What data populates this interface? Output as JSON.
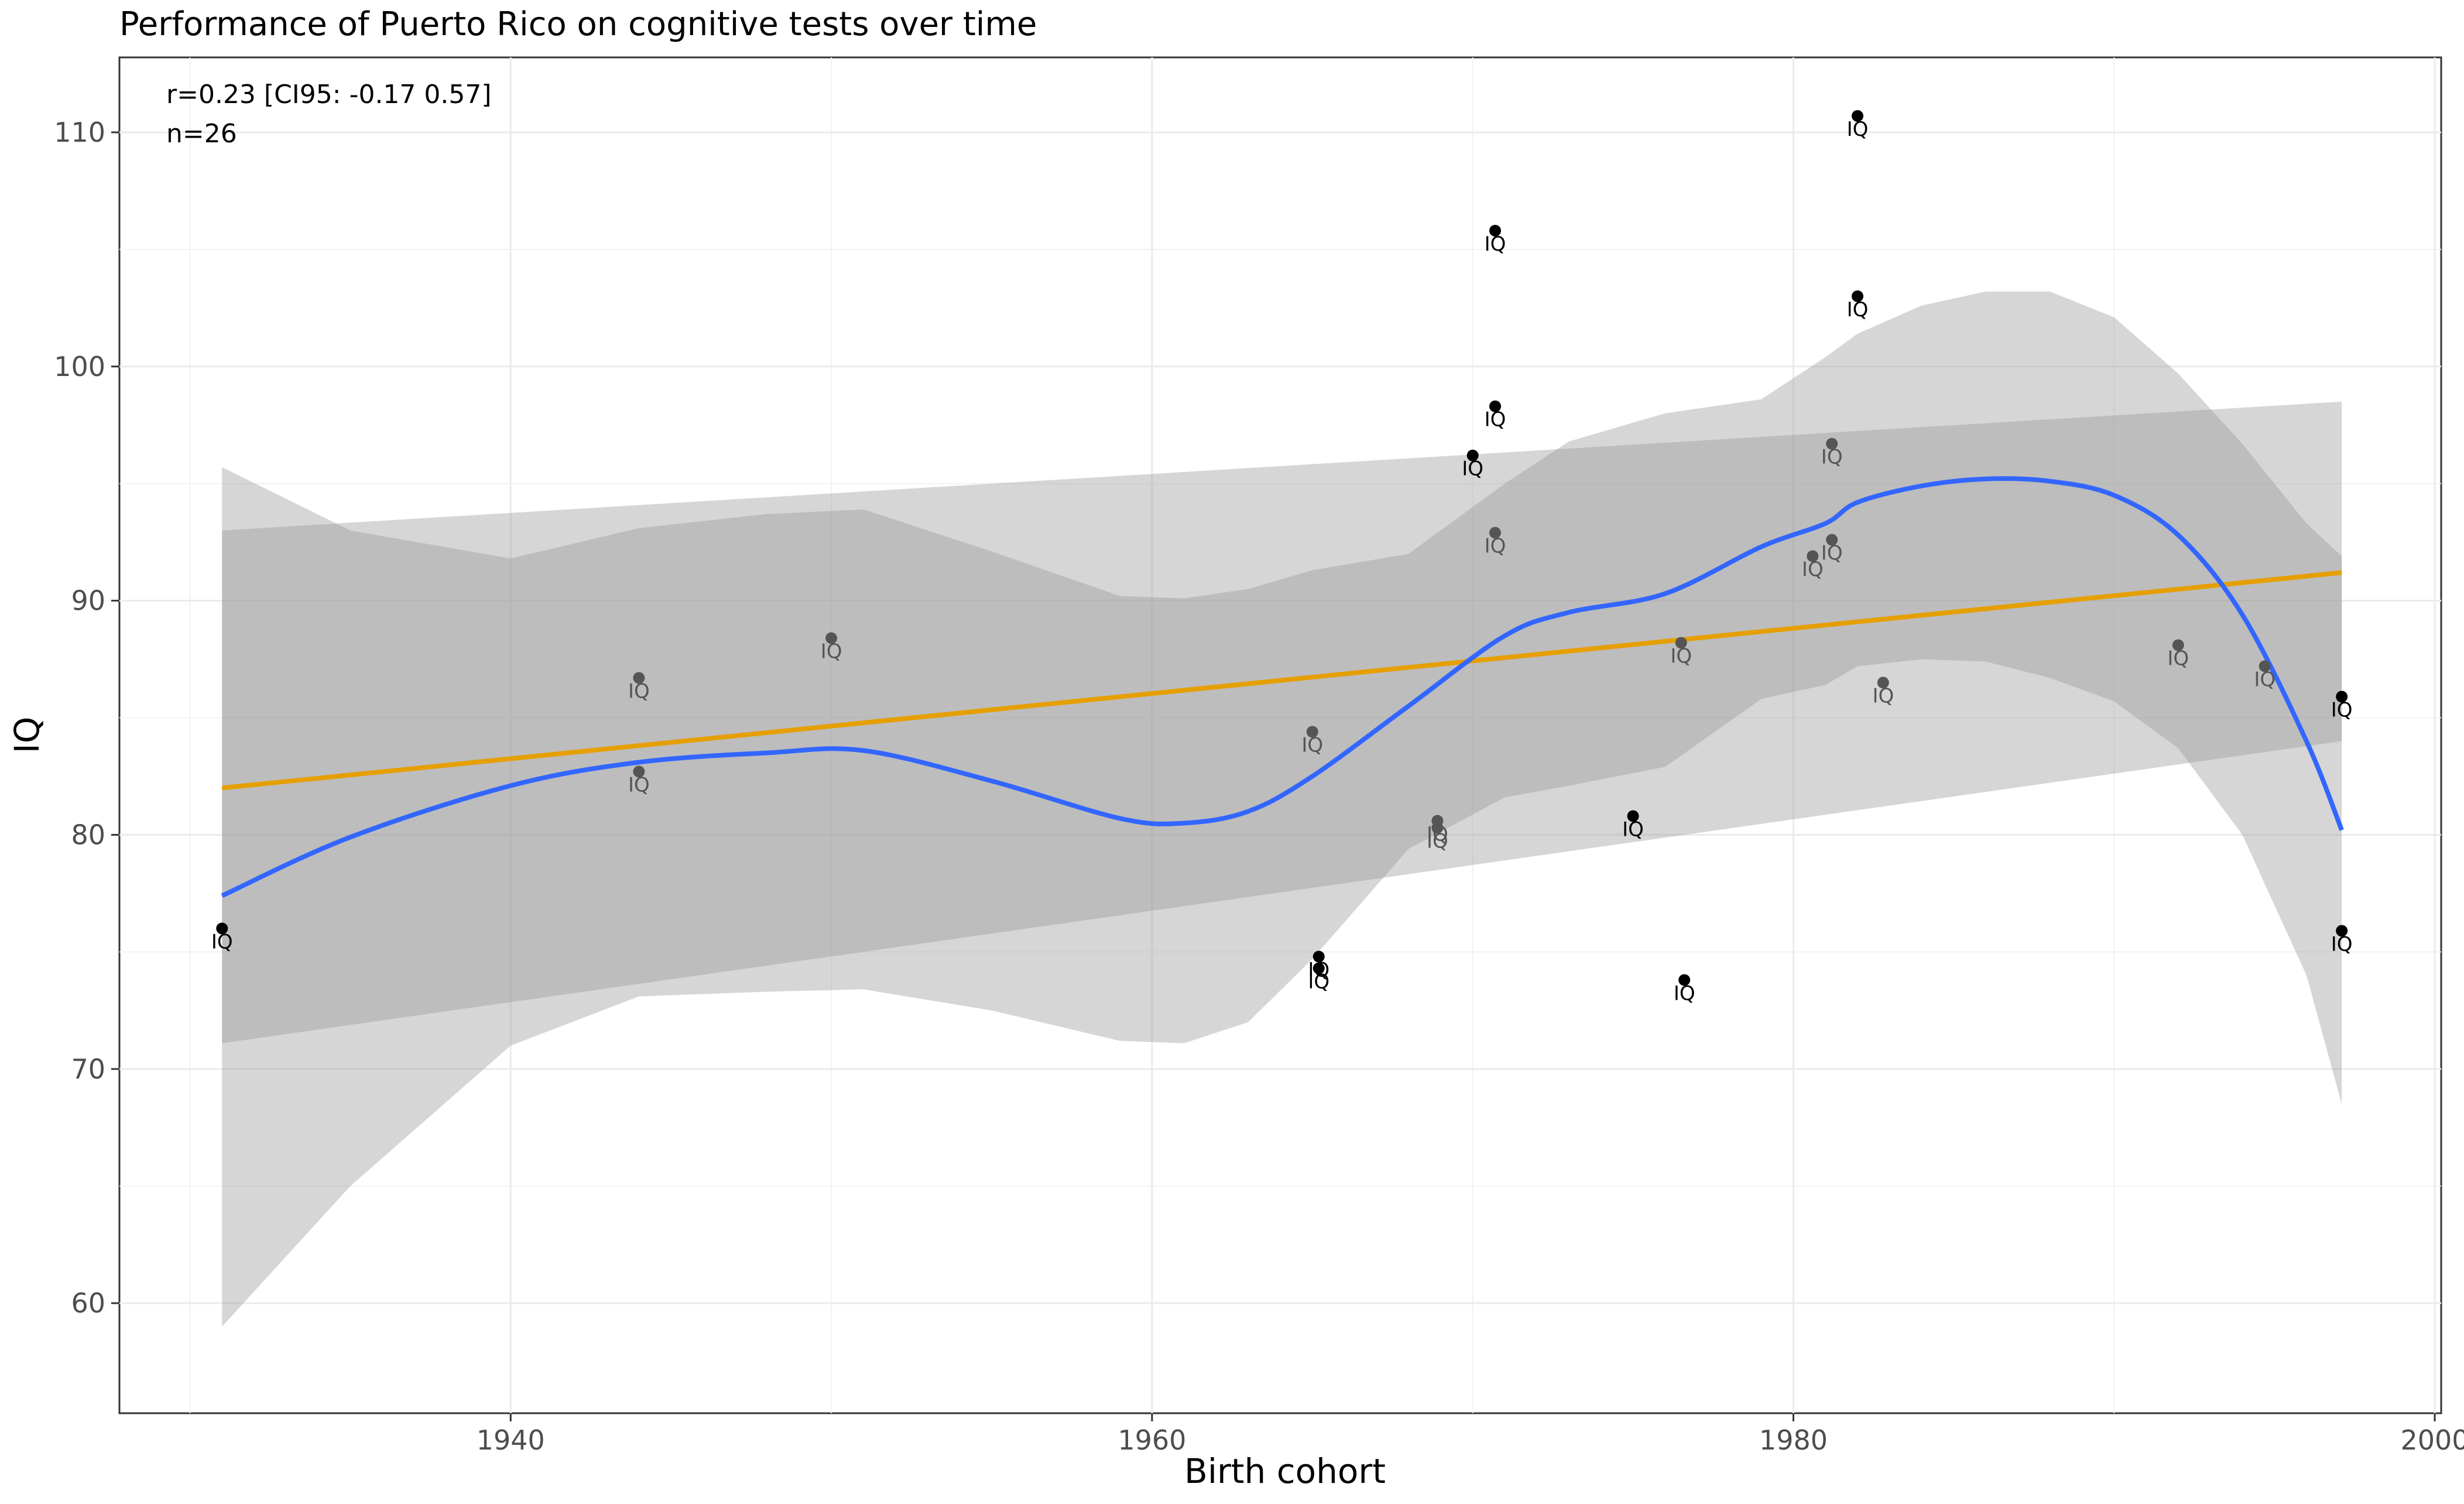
{
  "chart_data": {
    "type": "scatter",
    "title": "Performance of Puerto Rico on cognitive tests over time",
    "xlabel": "Birth cohort",
    "ylabel": "IQ",
    "xlim": [
      1927.8,
      2000.2
    ],
    "ylim": [
      55.3,
      113.2
    ],
    "x_ticks": [
      1940,
      1960,
      1980,
      2000
    ],
    "y_ticks": [
      60,
      70,
      80,
      90,
      100,
      110
    ],
    "grid": true,
    "annotations": [
      "r=0.23 [CI95: -0.17 0.57]",
      "n=26"
    ],
    "point_label": "IQ",
    "points": [
      {
        "x": 1931.0,
        "y": 76.0,
        "label": "IQ",
        "shade": "dark"
      },
      {
        "x": 1944.0,
        "y": 86.7,
        "label": "IQ",
        "shade": "grey"
      },
      {
        "x": 1944.0,
        "y": 82.7,
        "label": "IQ",
        "shade": "grey"
      },
      {
        "x": 1950.0,
        "y": 88.4,
        "label": "IQ",
        "shade": "grey"
      },
      {
        "x": 1965.0,
        "y": 84.4,
        "label": "IQ",
        "shade": "grey"
      },
      {
        "x": 1965.2,
        "y": 74.8,
        "label": "IQ",
        "shade": "dark"
      },
      {
        "x": 1965.2,
        "y": 74.3,
        "label": "IQ",
        "shade": "dark"
      },
      {
        "x": 1968.9,
        "y": 80.6,
        "label": "IQ",
        "shade": "grey"
      },
      {
        "x": 1968.9,
        "y": 80.3,
        "label": "IQ",
        "shade": "grey"
      },
      {
        "x": 1970.0,
        "y": 96.2,
        "label": "IQ",
        "shade": "dark"
      },
      {
        "x": 1970.7,
        "y": 105.8,
        "label": "IQ",
        "shade": "dark"
      },
      {
        "x": 1970.7,
        "y": 98.3,
        "label": "IQ",
        "shade": "dark"
      },
      {
        "x": 1970.7,
        "y": 92.9,
        "label": "IQ",
        "shade": "grey"
      },
      {
        "x": 1975.0,
        "y": 80.8,
        "label": "IQ",
        "shade": "dark"
      },
      {
        "x": 1976.5,
        "y": 88.2,
        "label": "IQ",
        "shade": "grey"
      },
      {
        "x": 1976.6,
        "y": 73.8,
        "label": "IQ",
        "shade": "dark"
      },
      {
        "x": 1980.6,
        "y": 91.9,
        "label": "IQ",
        "shade": "grey"
      },
      {
        "x": 1981.2,
        "y": 96.7,
        "label": "IQ",
        "shade": "grey"
      },
      {
        "x": 1981.2,
        "y": 92.6,
        "label": "IQ",
        "shade": "grey"
      },
      {
        "x": 1982.0,
        "y": 110.7,
        "label": "IQ",
        "shade": "dark"
      },
      {
        "x": 1982.0,
        "y": 103.0,
        "label": "IQ",
        "shade": "dark"
      },
      {
        "x": 1982.8,
        "y": 86.5,
        "label": "IQ",
        "shade": "grey"
      },
      {
        "x": 1992.0,
        "y": 88.1,
        "label": "IQ",
        "shade": "grey"
      },
      {
        "x": 1994.7,
        "y": 87.2,
        "label": "IQ",
        "shade": "grey"
      },
      {
        "x": 1997.1,
        "y": 85.9,
        "label": "IQ",
        "shade": "dark"
      },
      {
        "x": 1997.1,
        "y": 75.9,
        "label": "IQ",
        "shade": "dark"
      }
    ],
    "linear_fit": {
      "color": "#E69F00",
      "x": [
        1931.0,
        1997.1
      ],
      "y": [
        82.0,
        91.2
      ],
      "ci_lower": [
        71.1,
        84.0
      ],
      "ci_upper": [
        93.0,
        98.5
      ]
    },
    "loess_fit": {
      "color": "#3366FF",
      "x": [
        1931.0,
        1935.0,
        1940.0,
        1944.0,
        1948.0,
        1951.0,
        1955.0,
        1959.0,
        1961.0,
        1963.0,
        1965.0,
        1968.0,
        1971.0,
        1973.0,
        1976.0,
        1979.0,
        1981.0,
        1982.0,
        1984.0,
        1986.0,
        1988.0,
        1990.0,
        1992.0,
        1994.0,
        1996.0,
        1997.1
      ],
      "y": [
        77.4,
        79.9,
        82.1,
        83.1,
        83.5,
        83.6,
        82.3,
        80.7,
        80.5,
        81.0,
        82.5,
        85.5,
        88.5,
        89.5,
        90.3,
        92.3,
        93.3,
        94.2,
        94.9,
        95.2,
        95.1,
        94.5,
        92.8,
        89.4,
        84.0,
        80.2
      ],
      "ci_lower": [
        59.0,
        65.0,
        71.0,
        73.1,
        73.3,
        73.4,
        72.5,
        71.2,
        71.1,
        72.0,
        74.7,
        79.4,
        81.6,
        82.1,
        82.9,
        85.8,
        86.4,
        87.2,
        87.5,
        87.4,
        86.7,
        85.7,
        83.7,
        80.0,
        74.0,
        68.5
      ],
      "ci_upper": [
        95.7,
        93.0,
        91.8,
        93.1,
        93.7,
        93.9,
        92.1,
        90.2,
        90.1,
        90.5,
        91.3,
        92.0,
        95.0,
        96.8,
        98.0,
        98.6,
        100.4,
        101.4,
        102.6,
        103.2,
        103.2,
        102.1,
        99.7,
        96.7,
        93.3,
        91.9
      ]
    }
  }
}
